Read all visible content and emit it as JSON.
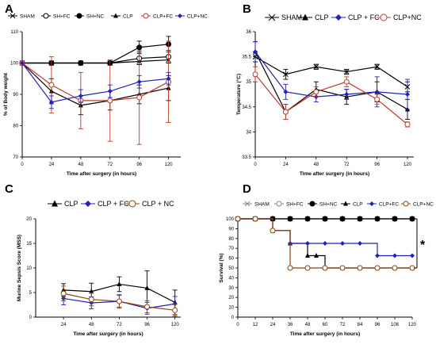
{
  "chart_data": [
    {
      "panel": "A",
      "type": "line",
      "xlabel": "Time after surgery (in hours)",
      "ylabel": "% of Body weight",
      "x": [
        0,
        24,
        48,
        72,
        96,
        120
      ],
      "xlim": [
        0,
        130
      ],
      "ylim": [
        70,
        110
      ],
      "xticks": [
        0,
        24,
        48,
        72,
        96,
        120
      ],
      "yticks": [
        70,
        80,
        90,
        100,
        110
      ],
      "legend": "top",
      "series": [
        {
          "name": "SHAM",
          "marker": "x",
          "color": "#000000",
          "values": [
            100,
            100,
            100,
            100,
            100.5,
            101
          ],
          "err": [
            0,
            0,
            0,
            0,
            1,
            1
          ]
        },
        {
          "name": "SH+FC",
          "marker": "circle-open",
          "color": "#000000",
          "values": [
            100,
            100,
            100,
            100,
            101.5,
            102
          ],
          "err": [
            0,
            0,
            0,
            0,
            2,
            2
          ]
        },
        {
          "name": "SH+NC",
          "marker": "circle-filled",
          "color": "#000000",
          "values": [
            100,
            100,
            100,
            100,
            105,
            106
          ],
          "err": [
            0,
            0,
            0,
            0,
            2,
            2.5
          ]
        },
        {
          "name": "CLP",
          "marker": "triangle",
          "color": "#000000",
          "values": [
            100,
            91,
            86.5,
            88,
            90,
            92
          ],
          "err": [
            0,
            4,
            3,
            3,
            3,
            4
          ]
        },
        {
          "name": "CLP+FC",
          "marker": "circle-open",
          "color": "#c0392b",
          "values": [
            100,
            93,
            88,
            88,
            89,
            94
          ],
          "err": [
            0,
            9,
            9,
            13,
            15,
            13
          ]
        },
        {
          "name": "CLP+NC",
          "marker": "diamond",
          "color": "#2222bb",
          "values": [
            100,
            87.5,
            89.5,
            91,
            94,
            95
          ],
          "err": [
            0,
            2,
            2,
            2,
            2,
            2
          ]
        }
      ]
    },
    {
      "panel": "B",
      "type": "line",
      "xlabel": "Time after surgery (in hours)",
      "ylabel": "Temperature (°C)",
      "x": [
        0,
        24,
        48,
        72,
        96,
        120
      ],
      "xlim": [
        0,
        125
      ],
      "ylim": [
        33.5,
        36.0
      ],
      "xticks": [
        0,
        24,
        48,
        72,
        96,
        120
      ],
      "yticks": [
        33.5,
        34.0,
        34.5,
        35.0,
        35.5,
        36.0
      ],
      "legend": "top",
      "series": [
        {
          "name": "SHAM",
          "marker": "x",
          "color": "#000000",
          "values": [
            35.5,
            35.15,
            35.3,
            35.2,
            35.3,
            34.9
          ],
          "err": [
            0.1,
            0.1,
            0.05,
            0.05,
            0.05,
            0.1
          ]
        },
        {
          "name": "CLP",
          "marker": "triangle",
          "color": "#000000",
          "values": [
            35.6,
            34.4,
            34.85,
            34.7,
            34.8,
            34.45
          ],
          "err": [
            0.2,
            0.15,
            0.15,
            0.15,
            0.2,
            0.2
          ]
        },
        {
          "name": "CLP + FC",
          "marker": "diamond",
          "color": "#2222bb",
          "values": [
            35.6,
            34.8,
            34.7,
            34.75,
            34.8,
            34.75
          ],
          "err": [
            0.2,
            0.15,
            0.1,
            0.1,
            0.3,
            0.3
          ]
        },
        {
          "name": "CLP+NC",
          "marker": "circle-open",
          "color": "#c0392b",
          "values": [
            35.15,
            34.4,
            34.8,
            35.0,
            34.65,
            34.15
          ],
          "err": [
            0.15,
            0.15,
            0.1,
            0.1,
            0.1,
            0.05
          ]
        }
      ]
    },
    {
      "panel": "C",
      "type": "line",
      "xlabel": "Time after surgery (in hours)",
      "ylabel": "Murine Sepsis Score (MSS)",
      "x": [
        24,
        48,
        72,
        96,
        120
      ],
      "xlim": [
        0,
        125
      ],
      "ylim": [
        0,
        20
      ],
      "xticks": [
        24,
        48,
        72,
        96,
        120
      ],
      "yticks": [
        0,
        5,
        10,
        15,
        20
      ],
      "legend": "top",
      "series": [
        {
          "name": "CLP",
          "marker": "triangle",
          "color": "#000000",
          "values": [
            5.5,
            5.2,
            6.7,
            5.9,
            3
          ],
          "err": [
            1.3,
            1.7,
            1.5,
            3.5,
            2.5
          ]
        },
        {
          "name": "CLP + FC",
          "marker": "diamond",
          "color": "#2222bb",
          "values": [
            3.8,
            2.9,
            3.2,
            1.8,
            2.7
          ],
          "err": [
            1.3,
            1.2,
            1.2,
            1.2,
            1.5
          ]
        },
        {
          "name": "CLP + NC",
          "marker": "circle-open",
          "color": "#8b4513",
          "values": [
            4.8,
            3.6,
            3.2,
            2.1,
            1.4
          ],
          "err": [
            1.5,
            1.3,
            1.4,
            1.2,
            1.2
          ]
        }
      ]
    },
    {
      "panel": "D",
      "type": "line",
      "xlabel": "Time after surgery (in hours)",
      "ylabel": "Survival (%)",
      "step": true,
      "xlim": [
        0,
        120
      ],
      "ylim": [
        0,
        100
      ],
      "xticks": [
        0,
        12,
        24,
        36,
        48,
        60,
        72,
        84,
        96,
        108,
        120
      ],
      "yticks": [
        0,
        10,
        20,
        30,
        40,
        50,
        60,
        70,
        80,
        90,
        100
      ],
      "legend": "top",
      "annotation": "*",
      "series": [
        {
          "name": "SHAM",
          "marker": "x",
          "color": "#888888",
          "x": [
            0,
            12,
            24,
            36,
            48,
            60,
            72,
            84,
            96,
            108,
            120
          ],
          "values": [
            100,
            100,
            100,
            100,
            100,
            100,
            100,
            100,
            100,
            100,
            100
          ]
        },
        {
          "name": "SH+FC",
          "marker": "circle-open",
          "color": "#888888",
          "x": [
            0,
            12,
            24,
            36,
            48,
            60,
            72,
            84,
            96,
            108,
            120
          ],
          "values": [
            100,
            100,
            100,
            100,
            100,
            100,
            100,
            100,
            100,
            100,
            100
          ]
        },
        {
          "name": "SH+NC",
          "marker": "circle-filled",
          "color": "#000000",
          "x": [
            0,
            12,
            24,
            36,
            48,
            60,
            72,
            84,
            96,
            108,
            120
          ],
          "values": [
            100,
            100,
            100,
            100,
            100,
            100,
            100,
            100,
            100,
            100,
            100
          ]
        },
        {
          "name": "CLP",
          "marker": "triangle",
          "color": "#000000",
          "x": [
            0,
            12,
            24,
            36,
            48,
            54,
            60,
            72,
            84,
            96,
            108,
            120
          ],
          "values": [
            100,
            100,
            88,
            75,
            62.5,
            62.5,
            50,
            50,
            50,
            50,
            50,
            50
          ]
        },
        {
          "name": "CLP+FC",
          "marker": "diamond",
          "color": "#2222bb",
          "x": [
            0,
            12,
            24,
            36,
            48,
            60,
            72,
            84,
            96,
            108,
            120
          ],
          "values": [
            100,
            100,
            88,
            75,
            75,
            75,
            75,
            75,
            62.5,
            62.5,
            62.5
          ]
        },
        {
          "name": "CLP+NC",
          "marker": "circle-open",
          "color": "#8b4513",
          "x": [
            0,
            12,
            24,
            36,
            48,
            60,
            72,
            84,
            96,
            108,
            120
          ],
          "values": [
            100,
            100,
            88,
            50,
            50,
            50,
            50,
            50,
            50,
            50,
            50
          ]
        }
      ]
    }
  ]
}
